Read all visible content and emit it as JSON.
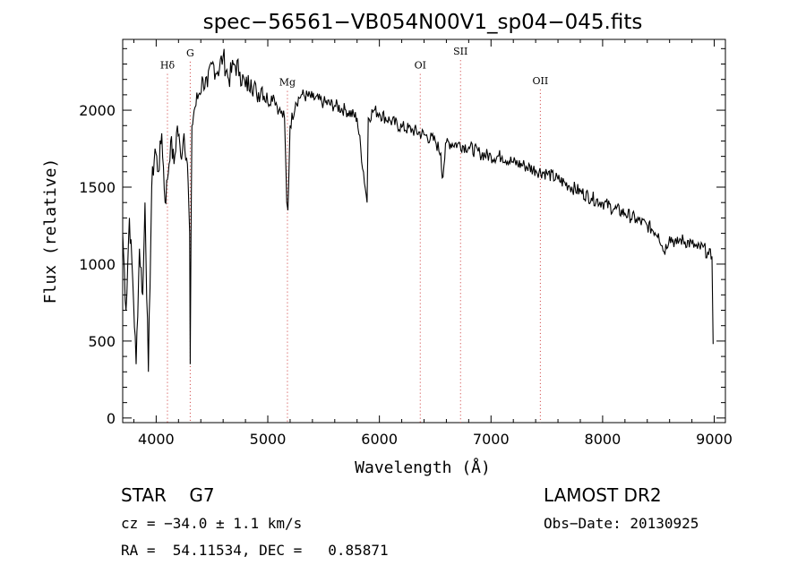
{
  "chart_data": {
    "type": "line",
    "title": "spec−56561−VB054N00V1_sp04−045.fits",
    "xlabel": "Wavelength (Å)",
    "ylabel": "Flux (relative)",
    "xlim": [
      3700,
      9100
    ],
    "ylim": [
      -30,
      2460
    ],
    "x_ticks": [
      4000,
      5000,
      6000,
      7000,
      8000,
      9000
    ],
    "y_ticks": [
      0,
      500,
      1000,
      1500,
      2000
    ],
    "x_tick_labels": [
      "4000",
      "5000",
      "6000",
      "7000",
      "8000",
      "9000"
    ],
    "y_tick_labels": [
      "0",
      "500",
      "1000",
      "1500",
      "2000"
    ],
    "line_color": "#000000",
    "marker_color": "#cc3333",
    "spectral_lines": [
      {
        "name": "Hδ",
        "wavelength": 4101,
        "label_flux": 2270
      },
      {
        "name": "G",
        "wavelength": 4305,
        "label_flux": 2350
      },
      {
        "name": "Mg",
        "wavelength": 5176,
        "label_flux": 2160
      },
      {
        "name": "OI",
        "wavelength": 6366,
        "label_flux": 2270
      },
      {
        "name": "SII",
        "wavelength": 6727,
        "label_flux": 2360
      },
      {
        "name": "OII",
        "wavelength": 7442,
        "label_flux": 2170
      }
    ],
    "series": [
      {
        "name": "flux",
        "x": [
          3700,
          3730,
          3760,
          3790,
          3820,
          3850,
          3880,
          3900,
          3930,
          3960,
          3990,
          4020,
          4050,
          4080,
          4101,
          4130,
          4160,
          4190,
          4220,
          4250,
          4280,
          4300,
          4305,
          4320,
          4340,
          4380,
          4420,
          4460,
          4500,
          4550,
          4600,
          4650,
          4700,
          4750,
          4800,
          4850,
          4900,
          4950,
          5000,
          5050,
          5100,
          5150,
          5170,
          5180,
          5200,
          5250,
          5300,
          5400,
          5500,
          5600,
          5700,
          5800,
          5890,
          5900,
          5950,
          6000,
          6100,
          6200,
          6300,
          6400,
          6500,
          6550,
          6563,
          6600,
          6700,
          6800,
          6900,
          7000,
          7100,
          7200,
          7300,
          7400,
          7500,
          7600,
          7700,
          7800,
          7900,
          8000,
          8100,
          8200,
          8300,
          8400,
          8500,
          8550,
          8600,
          8662,
          8700,
          8800,
          8850,
          8900,
          8950,
          8980,
          8990
        ],
        "y": [
          1200,
          700,
          1300,
          900,
          350,
          1100,
          800,
          1400,
          300,
          1500,
          1750,
          1600,
          1850,
          1400,
          1550,
          1800,
          1650,
          1900,
          1700,
          1850,
          1650,
          1200,
          350,
          1900,
          2000,
          2100,
          2200,
          2150,
          2300,
          2250,
          2350,
          2200,
          2300,
          2250,
          2150,
          2200,
          2100,
          2150,
          2050,
          2100,
          2000,
          1950,
          1400,
          1350,
          1900,
          2050,
          2100,
          2080,
          2050,
          2030,
          2000,
          1950,
          1400,
          1950,
          2000,
          1980,
          1930,
          1890,
          1870,
          1840,
          1800,
          1720,
          1560,
          1790,
          1780,
          1760,
          1720,
          1700,
          1700,
          1660,
          1640,
          1610,
          1590,
          1550,
          1510,
          1470,
          1430,
          1400,
          1360,
          1330,
          1290,
          1250,
          1200,
          1080,
          1180,
          1130,
          1160,
          1130,
          1100,
          1110,
          1060,
          1050,
          480
        ]
      }
    ]
  },
  "info": {
    "object_line": "STAR    G7",
    "survey": "LAMOST DR2",
    "cz": "cz = −34.0 ± 1.1 km/s",
    "obs_date": "Obs−Date: 20130925",
    "coords": "RA =  54.11534, DEC =   0.85871"
  }
}
